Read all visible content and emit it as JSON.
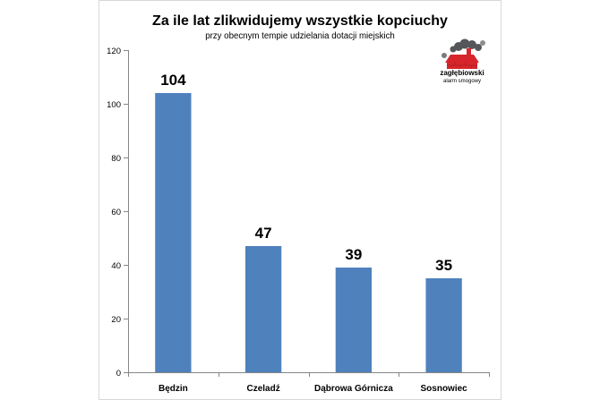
{
  "chart_data": {
    "type": "bar",
    "title": "Za ile lat zlikwidujemy wszystkie kopciuchy",
    "subtitle": "przy obecnym tempie udzielania dotacji miejskich",
    "categories": [
      "Będzin",
      "Czeladź",
      "Dąbrowa Górnicza",
      "Sosnowiec"
    ],
    "values": [
      104,
      47,
      39,
      35
    ],
    "ylim": [
      0,
      120
    ],
    "yticks": [
      0,
      20,
      40,
      60,
      80,
      100,
      120
    ],
    "grid": false,
    "bar_color": "#4F81BD"
  },
  "logo": {
    "line1": "zagłębiowski",
    "line2": "alarm smogowy",
    "colors": {
      "red": "#D7262B",
      "smoke": "#55565A",
      "text_dark": "#333333"
    }
  }
}
